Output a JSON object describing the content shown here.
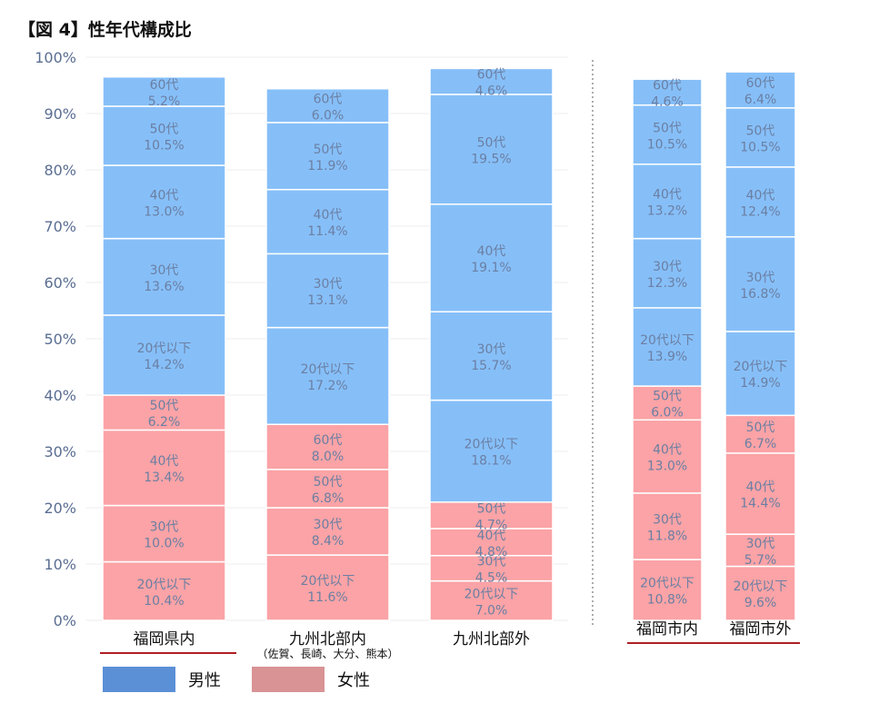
{
  "title": "【図 4】性年代構成比",
  "colors": {
    "male": "#86BFF8",
    "female": "#FBA3A6",
    "legend_male": "#5B8FD6",
    "legend_female": "#D99395",
    "text_in_bar": "#6B7FA3",
    "axis_text": "#5A6E92",
    "underline": "#B01E23"
  },
  "legend": {
    "male": "男性",
    "female": "女性"
  },
  "chart_data": {
    "type": "bar",
    "stacked": true,
    "yaxis": {
      "ylim": [
        0,
        100
      ],
      "ticks": [
        "0%",
        "10%",
        "20%",
        "30%",
        "40%",
        "50%",
        "60%",
        "70%",
        "80%",
        "90%",
        "100%"
      ]
    },
    "groups": [
      {
        "bars": [
          {
            "category": "福岡県内",
            "underline": true,
            "segments": [
              {
                "gender": "female",
                "label": "20代以下",
                "value": 10.4,
                "text": "10.4%"
              },
              {
                "gender": "female",
                "label": "30代",
                "value": 10.0,
                "text": "10.0%"
              },
              {
                "gender": "female",
                "label": "40代",
                "value": 13.4,
                "text": "13.4%"
              },
              {
                "gender": "female",
                "label": "50代",
                "value": 6.2,
                "text": "6.2%"
              },
              {
                "gender": "male",
                "label": "20代以下",
                "value": 14.2,
                "text": "14.2%"
              },
              {
                "gender": "male",
                "label": "30代",
                "value": 13.6,
                "text": "13.6%"
              },
              {
                "gender": "male",
                "label": "40代",
                "value": 13.0,
                "text": "13.0%"
              },
              {
                "gender": "male",
                "label": "50代",
                "value": 10.5,
                "text": "10.5%"
              },
              {
                "gender": "male",
                "label": "60代",
                "value": 5.2,
                "text": "5.2%"
              }
            ]
          },
          {
            "category": "九州北部内",
            "sublabel": "（佐賀、長崎、大分、熊本）",
            "segments": [
              {
                "gender": "female",
                "label": "20代以下",
                "value": 11.6,
                "text": "11.6%"
              },
              {
                "gender": "female",
                "label": "30代",
                "value": 8.4,
                "text": "8.4%"
              },
              {
                "gender": "female",
                "label": "50代",
                "value": 6.8,
                "text": "6.8%"
              },
              {
                "gender": "female",
                "label": "60代",
                "value": 8.0,
                "text": "8.0%"
              },
              {
                "gender": "male",
                "label": "20代以下",
                "value": 17.2,
                "text": "17.2%"
              },
              {
                "gender": "male",
                "label": "30代",
                "value": 13.1,
                "text": "13.1%"
              },
              {
                "gender": "male",
                "label": "40代",
                "value": 11.4,
                "text": "11.4%"
              },
              {
                "gender": "male",
                "label": "50代",
                "value": 11.9,
                "text": "11.9%"
              },
              {
                "gender": "male",
                "label": "60代",
                "value": 6.0,
                "text": "6.0%"
              }
            ]
          },
          {
            "category": "九州北部外",
            "segments": [
              {
                "gender": "female",
                "label": "20代以下",
                "value": 7.0,
                "text": "7.0%"
              },
              {
                "gender": "female",
                "label": "30代",
                "value": 4.5,
                "text": "4.5%"
              },
              {
                "gender": "female",
                "label": "40代",
                "value": 4.8,
                "text": "4.8%"
              },
              {
                "gender": "female",
                "label": "50代",
                "value": 4.7,
                "text": "4.7%"
              },
              {
                "gender": "male",
                "label": "20代以下",
                "value": 18.1,
                "text": "18.1%"
              },
              {
                "gender": "male",
                "label": "30代",
                "value": 15.7,
                "text": "15.7%"
              },
              {
                "gender": "male",
                "label": "40代",
                "value": 19.1,
                "text": "19.1%"
              },
              {
                "gender": "male",
                "label": "50代",
                "value": 19.5,
                "text": "19.5%"
              },
              {
                "gender": "male",
                "label": "60代",
                "value": 4.6,
                "text": "4.6%"
              }
            ]
          }
        ]
      },
      {
        "underline": true,
        "bars": [
          {
            "category": "福岡市内",
            "segments": [
              {
                "gender": "female",
                "label": "20代以下",
                "value": 10.8,
                "text": "10.8%"
              },
              {
                "gender": "female",
                "label": "30代",
                "value": 11.8,
                "text": "11.8%"
              },
              {
                "gender": "female",
                "label": "40代",
                "value": 13.0,
                "text": "13.0%"
              },
              {
                "gender": "female",
                "label": "50代",
                "value": 6.0,
                "text": "6.0%"
              },
              {
                "gender": "male",
                "label": "20代以下",
                "value": 13.9,
                "text": "13.9%"
              },
              {
                "gender": "male",
                "label": "30代",
                "value": 12.3,
                "text": "12.3%"
              },
              {
                "gender": "male",
                "label": "40代",
                "value": 13.2,
                "text": "13.2%"
              },
              {
                "gender": "male",
                "label": "50代",
                "value": 10.5,
                "text": "10.5%"
              },
              {
                "gender": "male",
                "label": "60代",
                "value": 4.6,
                "text": "4.6%"
              }
            ]
          },
          {
            "category": "福岡市外",
            "segments": [
              {
                "gender": "female",
                "label": "20代以下",
                "value": 9.6,
                "text": "9.6%"
              },
              {
                "gender": "female",
                "label": "30代",
                "value": 5.7,
                "text": "5.7%"
              },
              {
                "gender": "female",
                "label": "40代",
                "value": 14.4,
                "text": "14.4%"
              },
              {
                "gender": "female",
                "label": "50代",
                "value": 6.7,
                "text": "6.7%"
              },
              {
                "gender": "male",
                "label": "20代以下",
                "value": 14.9,
                "text": "14.9%"
              },
              {
                "gender": "male",
                "label": "30代",
                "value": 16.8,
                "text": "16.8%"
              },
              {
                "gender": "male",
                "label": "40代",
                "value": 12.4,
                "text": "12.4%"
              },
              {
                "gender": "male",
                "label": "50代",
                "value": 10.5,
                "text": "10.5%"
              },
              {
                "gender": "male",
                "label": "60代",
                "value": 6.4,
                "text": "6.4%"
              }
            ]
          }
        ]
      }
    ]
  }
}
